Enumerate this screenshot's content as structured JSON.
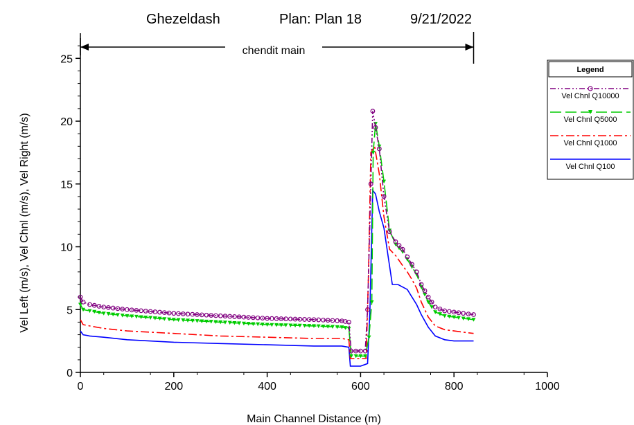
{
  "header": {
    "river": "Ghezeldash",
    "plan": "Plan: Plan 18",
    "date": "9/21/2022"
  },
  "reach": {
    "label": "chendit main",
    "x_start": 0,
    "x_end": 842
  },
  "legend": {
    "title": "Legend"
  },
  "chart_data": {
    "type": "line",
    "title": "Ghezeldash      Plan: Plan 18    9/21/2022",
    "xlabel": "Main Channel Distance (m)",
    "ylabel": "Vel Left (m/s), Vel Chnl (m/s), Vel Right (m/s)",
    "xlim": [
      0,
      1000
    ],
    "ylim": [
      0,
      27
    ],
    "x_ticks": [
      0,
      200,
      400,
      600,
      800,
      1000
    ],
    "y_ticks": [
      0,
      5,
      10,
      15,
      20,
      25
    ],
    "grid": false,
    "legend_position": "right",
    "series": [
      {
        "name": "Vel Chnl Q10000",
        "color": "#800080",
        "style": "dash-dot-dot",
        "marker": "circle",
        "points": [
          [
            0,
            6.0
          ],
          [
            6,
            5.6
          ],
          [
            20,
            5.4
          ],
          [
            50,
            5.2
          ],
          [
            100,
            5.0
          ],
          [
            200,
            4.7
          ],
          [
            300,
            4.5
          ],
          [
            400,
            4.3
          ],
          [
            500,
            4.2
          ],
          [
            560,
            4.1
          ],
          [
            575,
            4.0
          ],
          [
            580,
            1.7
          ],
          [
            600,
            1.7
          ],
          [
            610,
            1.7
          ],
          [
            615,
            5.0
          ],
          [
            622,
            15.0
          ],
          [
            626,
            20.8
          ],
          [
            632,
            19.5
          ],
          [
            640,
            17.8
          ],
          [
            650,
            14.0
          ],
          [
            662,
            11.2
          ],
          [
            675,
            10.4
          ],
          [
            690,
            9.8
          ],
          [
            700,
            9.2
          ],
          [
            710,
            8.6
          ],
          [
            720,
            8.0
          ],
          [
            730,
            7.0
          ],
          [
            745,
            6.0
          ],
          [
            760,
            5.2
          ],
          [
            780,
            4.9
          ],
          [
            800,
            4.8
          ],
          [
            820,
            4.7
          ],
          [
            842,
            4.6
          ]
        ]
      },
      {
        "name": "Vel Chnl Q5000",
        "color": "#00cc00",
        "style": "long-dash",
        "marker": "triangle-down",
        "points": [
          [
            0,
            5.4
          ],
          [
            6,
            5.0
          ],
          [
            20,
            4.9
          ],
          [
            50,
            4.7
          ],
          [
            100,
            4.5
          ],
          [
            200,
            4.2
          ],
          [
            300,
            4.0
          ],
          [
            400,
            3.8
          ],
          [
            500,
            3.7
          ],
          [
            560,
            3.6
          ],
          [
            575,
            3.5
          ],
          [
            580,
            1.3
          ],
          [
            600,
            1.3
          ],
          [
            610,
            1.3
          ],
          [
            618,
            2.8
          ],
          [
            624,
            5.6
          ],
          [
            627,
            17.5
          ],
          [
            632,
            19.8
          ],
          [
            640,
            18.0
          ],
          [
            650,
            15.2
          ],
          [
            662,
            11.3
          ],
          [
            675,
            10.2
          ],
          [
            690,
            9.6
          ],
          [
            700,
            9.0
          ],
          [
            710,
            8.4
          ],
          [
            720,
            7.8
          ],
          [
            730,
            6.8
          ],
          [
            745,
            5.6
          ],
          [
            760,
            4.8
          ],
          [
            780,
            4.5
          ],
          [
            800,
            4.4
          ],
          [
            820,
            4.3
          ],
          [
            842,
            4.2
          ]
        ]
      },
      {
        "name": "Vel Chnl Q1000",
        "color": "#ff0000",
        "style": "dash-dot",
        "marker": "none",
        "points": [
          [
            0,
            4.2
          ],
          [
            6,
            3.8
          ],
          [
            20,
            3.7
          ],
          [
            50,
            3.5
          ],
          [
            100,
            3.3
          ],
          [
            200,
            3.1
          ],
          [
            300,
            2.9
          ],
          [
            400,
            2.8
          ],
          [
            500,
            2.7
          ],
          [
            560,
            2.7
          ],
          [
            575,
            2.6
          ],
          [
            578,
            1.1
          ],
          [
            600,
            1.1
          ],
          [
            612,
            1.1
          ],
          [
            617,
            8.0
          ],
          [
            622,
            17.5
          ],
          [
            630,
            18.0
          ],
          [
            640,
            15.8
          ],
          [
            650,
            12.4
          ],
          [
            662,
            9.8
          ],
          [
            675,
            9.3
          ],
          [
            690,
            8.5
          ],
          [
            700,
            8.0
          ],
          [
            710,
            7.4
          ],
          [
            720,
            6.7
          ],
          [
            730,
            5.6
          ],
          [
            745,
            4.4
          ],
          [
            760,
            3.7
          ],
          [
            780,
            3.4
          ],
          [
            800,
            3.3
          ],
          [
            820,
            3.2
          ],
          [
            842,
            3.1
          ]
        ]
      },
      {
        "name": "Vel Chnl Q100",
        "color": "#0000ff",
        "style": "solid",
        "marker": "none",
        "points": [
          [
            0,
            3.3
          ],
          [
            6,
            3.0
          ],
          [
            20,
            2.9
          ],
          [
            50,
            2.8
          ],
          [
            100,
            2.6
          ],
          [
            200,
            2.4
          ],
          [
            300,
            2.3
          ],
          [
            400,
            2.2
          ],
          [
            500,
            2.1
          ],
          [
            560,
            2.1
          ],
          [
            575,
            2.0
          ],
          [
            578,
            0.5
          ],
          [
            600,
            0.5
          ],
          [
            615,
            0.7
          ],
          [
            620,
            5.0
          ],
          [
            626,
            14.5
          ],
          [
            632,
            14.2
          ],
          [
            640,
            12.8
          ],
          [
            650,
            11.5
          ],
          [
            660,
            9.0
          ],
          [
            668,
            7.0
          ],
          [
            680,
            7.0
          ],
          [
            700,
            6.6
          ],
          [
            710,
            6.0
          ],
          [
            720,
            5.4
          ],
          [
            730,
            4.6
          ],
          [
            745,
            3.6
          ],
          [
            760,
            2.9
          ],
          [
            780,
            2.6
          ],
          [
            800,
            2.5
          ],
          [
            820,
            2.5
          ],
          [
            842,
            2.5
          ]
        ]
      }
    ]
  }
}
